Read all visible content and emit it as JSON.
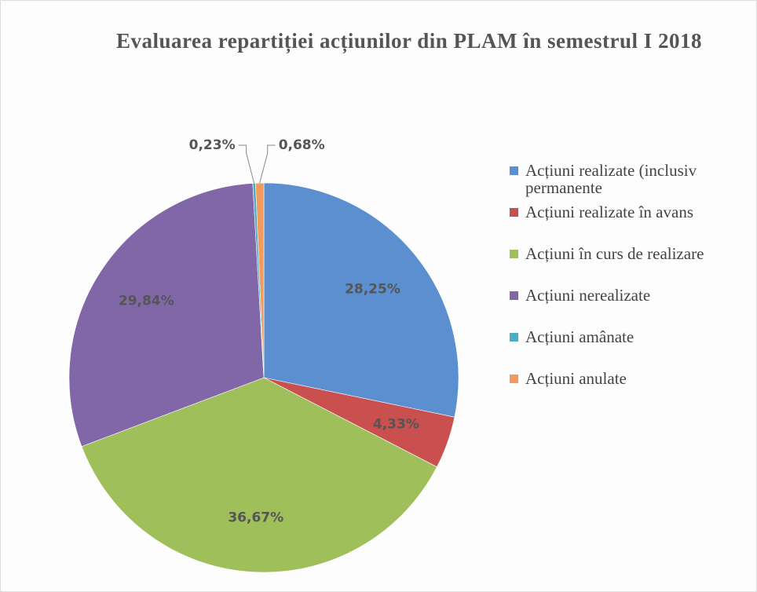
{
  "chart_data": {
    "type": "pie",
    "title": "Evaluarea repartiției acțiunilor din PLAM în semestrul I 2018",
    "categories": [
      "Acțiuni realizate (inclusiv permanente",
      "Acțiuni realizate în avans",
      "Acțiuni în curs de realizare",
      "Acțiuni nerealizate",
      "Acțiuni amânate",
      "Acțiuni anulate"
    ],
    "values": [
      28.25,
      4.33,
      36.67,
      29.84,
      0.23,
      0.68
    ],
    "value_labels": [
      "28,25%",
      "4,33%",
      "36,67%",
      "29,84%",
      "0,23%",
      "0,68%"
    ],
    "colors": [
      "#5b8fd0",
      "#c9504f",
      "#9fbf5a",
      "#8166a8",
      "#4bacc6",
      "#f39a5c"
    ],
    "legend": "right"
  }
}
